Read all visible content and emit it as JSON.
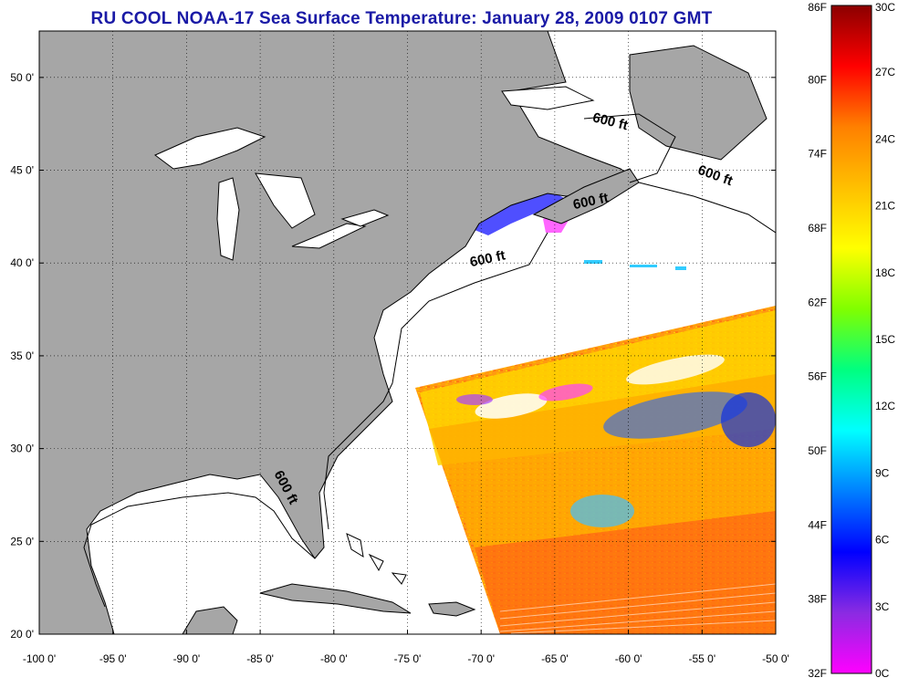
{
  "title": "RU COOL  NOAA-17  Sea Surface Temperature:  January 28, 2009 0107 GMT",
  "colors": {
    "title": "#1a1aa6",
    "land": "#a6a6a6",
    "ocean_nodata": "#ffffff",
    "coast": "#000000",
    "grid": "#000000"
  },
  "map": {
    "lon_range": [
      -100,
      -50
    ],
    "lat_range": [
      20,
      52.5
    ],
    "x_ticks": [
      "-100 0'",
      "-95 0'",
      "-90 0'",
      "-85 0'",
      "-80 0'",
      "-75 0'",
      "-70 0'",
      "-65 0'",
      "-60 0'",
      "-55 0'",
      "-50 0'"
    ],
    "x_tick_values": [
      -100,
      -95,
      -90,
      -85,
      -80,
      -75,
      -70,
      -65,
      -60,
      -55,
      -50
    ],
    "y_ticks": [
      "20 0'",
      "25 0'",
      "30 0'",
      "35 0'",
      "40 0'",
      "45 0'",
      "50 0'"
    ],
    "y_tick_values": [
      20,
      25,
      30,
      35,
      40,
      45,
      50
    ],
    "grid": "dotted",
    "contour_labels": [
      {
        "text": "600 ft",
        "lon": -61.3,
        "lat": 47.4,
        "rot": 14
      },
      {
        "text": "600 ft",
        "lon": -54.2,
        "lat": 44.5,
        "rot": 20
      },
      {
        "text": "600 ft",
        "lon": -62.5,
        "lat": 43.1,
        "rot": -12
      },
      {
        "text": "600 ft",
        "lon": -69.5,
        "lat": 40.0,
        "rot": -12
      },
      {
        "text": "600 ft",
        "lon": -83.5,
        "lat": 27.8,
        "rot": 62
      }
    ]
  },
  "colorbar": {
    "fahrenheit_labels": [
      "86F",
      "80F",
      "74F",
      "68F",
      "62F",
      "56F",
      "50F",
      "44F",
      "38F",
      "32F"
    ],
    "celsius_labels": [
      "30C",
      "27C",
      "24C",
      "21C",
      "18C",
      "15C",
      "12C",
      "9C",
      "6C",
      "3C",
      "0C"
    ],
    "range_c": [
      0,
      30
    ],
    "stops": [
      "#ff00ff",
      "#8a2be2",
      "#0000ff",
      "#0080ff",
      "#00ffff",
      "#00ff80",
      "#80ff00",
      "#ffff00",
      "#ffc000",
      "#ff8000",
      "#ff0000",
      "#8b0000"
    ]
  }
}
